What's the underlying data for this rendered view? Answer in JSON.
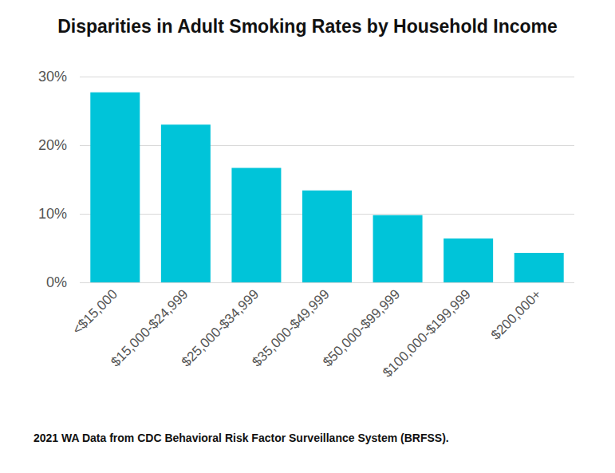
{
  "chart_data": {
    "type": "bar",
    "title": "Disparities in Adult Smoking Rates by Household Income",
    "annotations": [
      "2021 WA Data from CDC Behavioral Risk Factor Surveillance System (BRFSS)."
    ],
    "categories": [
      "<$15,000",
      "$15,000-$24,999",
      "$25,000-$34,999",
      "$35,000-$49,999",
      "$50,000-$99,999",
      "$100,000-$199,999",
      "$200,000+"
    ],
    "values": [
      27.7,
      23.0,
      16.7,
      13.4,
      9.8,
      6.4,
      4.3
    ],
    "color": "#00c4d9",
    "ylim": [
      0,
      30
    ],
    "yticks": [
      {
        "value": 0,
        "label": "0%"
      },
      {
        "value": 10,
        "label": "10%"
      },
      {
        "value": 20,
        "label": "20%"
      },
      {
        "value": 30,
        "label": "30%"
      }
    ],
    "grid": true
  }
}
